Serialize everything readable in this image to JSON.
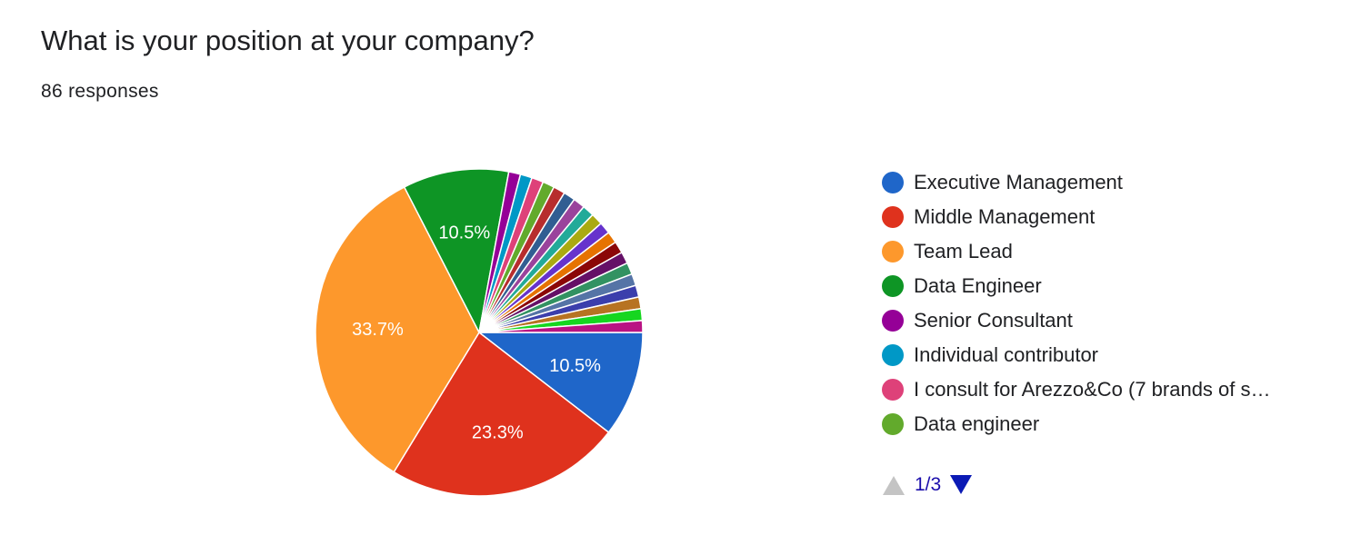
{
  "question": {
    "title": "What is your position at your company?",
    "responses": "86 responses"
  },
  "chart_data": {
    "type": "pie",
    "title": "What is your position at your company?",
    "total_responses": 86,
    "start_angle_deg": 90,
    "direction": "clockwise",
    "slices": [
      {
        "label": "Executive Management",
        "value": 9,
        "percent_label": "10.5%",
        "color": "#1f66c9"
      },
      {
        "label": "Middle Management",
        "value": 20,
        "percent_label": "23.3%",
        "color": "#df321d"
      },
      {
        "label": "Team Lead",
        "value": 29,
        "percent_label": "33.7%",
        "color": "#fd982c"
      },
      {
        "label": "Data Engineer",
        "value": 9,
        "percent_label": "10.5%",
        "color": "#0e9525"
      },
      {
        "label": "Senior Consultant",
        "value": 1,
        "color": "#950097"
      },
      {
        "label": "Individual contributor",
        "value": 1,
        "color": "#0098c6"
      },
      {
        "label": "I consult for Arezzo&Co (7 brands of s…",
        "value": 1,
        "color": "#de4179"
      },
      {
        "label": "Data engineer",
        "value": 1,
        "color": "#62aa2c"
      },
      {
        "label": "",
        "value": 1,
        "color": "#b72d2d"
      },
      {
        "label": "",
        "value": 1,
        "color": "#315e92"
      },
      {
        "label": "",
        "value": 1,
        "color": "#9a439c"
      },
      {
        "label": "",
        "value": 1,
        "color": "#22aa99"
      },
      {
        "label": "",
        "value": 1,
        "color": "#aaaa11"
      },
      {
        "label": "",
        "value": 1,
        "color": "#6633cc"
      },
      {
        "label": "",
        "value": 1,
        "color": "#e67300"
      },
      {
        "label": "",
        "value": 1,
        "color": "#8b0707"
      },
      {
        "label": "",
        "value": 1,
        "color": "#651067"
      },
      {
        "label": "",
        "value": 1,
        "color": "#329262"
      },
      {
        "label": "",
        "value": 1,
        "color": "#5574a6"
      },
      {
        "label": "",
        "value": 1,
        "color": "#3b3eac"
      },
      {
        "label": "",
        "value": 1,
        "color": "#b77322"
      },
      {
        "label": "",
        "value": 1,
        "color": "#16d620"
      },
      {
        "label": "",
        "value": 1,
        "color": "#b91383"
      }
    ]
  },
  "legend": {
    "items": [
      {
        "label": "Executive Management",
        "color": "#1f66c9"
      },
      {
        "label": "Middle Management",
        "color": "#df321d"
      },
      {
        "label": "Team Lead",
        "color": "#fd982c"
      },
      {
        "label": "Data Engineer",
        "color": "#0e9525"
      },
      {
        "label": "Senior Consultant",
        "color": "#950097"
      },
      {
        "label": "Individual contributor",
        "color": "#0098c6"
      },
      {
        "label": "I consult for Arezzo&Co (7 brands of s…",
        "color": "#de4179"
      },
      {
        "label": "Data engineer",
        "color": "#62aa2c"
      }
    ],
    "pager": {
      "text": "1/3",
      "prev_color": "#c4c4c4",
      "next_color": "#0b1ab5"
    }
  }
}
